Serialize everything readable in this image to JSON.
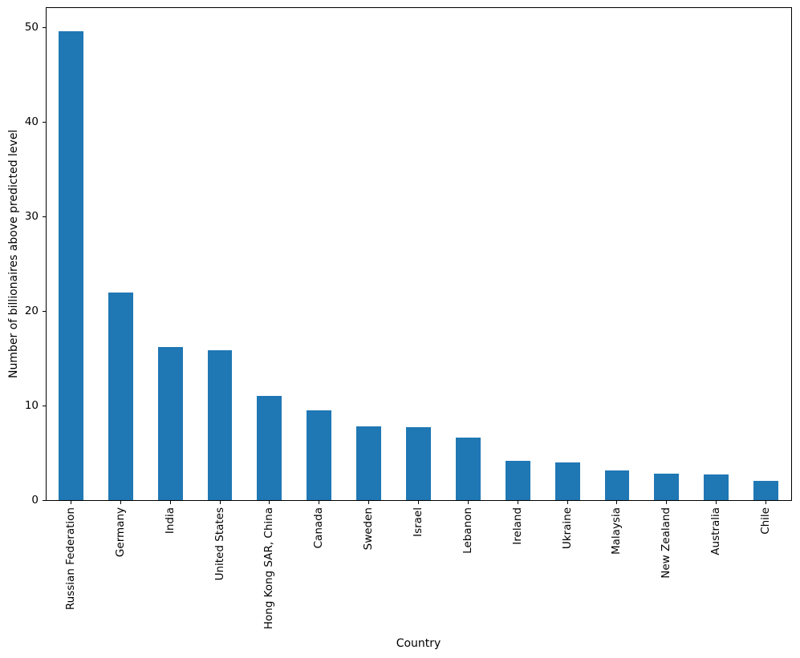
{
  "chart_data": {
    "type": "bar",
    "title": "",
    "xlabel": "Country",
    "ylabel": "Number of billionaires above predicted level",
    "categories": [
      "Russian Federation",
      "Germany",
      "India",
      "United States",
      "Hong Kong SAR, China",
      "Canada",
      "Sweden",
      "Israel",
      "Lebanon",
      "Ireland",
      "Ukraine",
      "Malaysia",
      "New Zealand",
      "Australia",
      "Chile"
    ],
    "values": [
      49.6,
      22.0,
      16.2,
      15.9,
      11.0,
      9.5,
      7.8,
      7.7,
      6.6,
      4.2,
      4.0,
      3.1,
      2.8,
      2.7,
      2.0
    ],
    "yticks": [
      0,
      10,
      20,
      30,
      40,
      50
    ],
    "ylim": [
      0,
      52.1
    ],
    "bar_color": "#1f77b4",
    "axis_color": "#000000",
    "background_color": "#ffffff",
    "grid": false,
    "legend": "none",
    "bar_width_fraction": 0.5,
    "x_tick_label_rotation": 90
  }
}
